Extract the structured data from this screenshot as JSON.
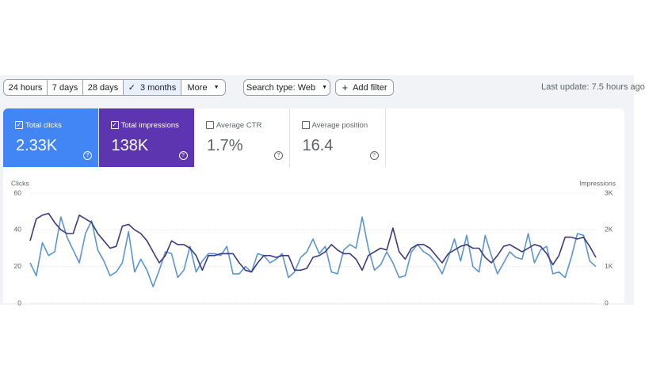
{
  "toolbar": {
    "ranges": [
      "24 hours",
      "7 days",
      "28 days",
      "3 months",
      "More"
    ],
    "selected_range": 3,
    "search_type": "Search type: Web",
    "add_filter": "Add filter",
    "last_update": "Last update: 7.5 hours ago"
  },
  "cards": [
    {
      "label": "Total clicks",
      "value": "2.33K",
      "checked": true,
      "color": "#4285f4"
    },
    {
      "label": "Total impressions",
      "value": "138K",
      "checked": true,
      "color": "#5e35b1"
    },
    {
      "label": "Average CTR",
      "value": "1.7%",
      "checked": false
    },
    {
      "label": "Average position",
      "value": "16.4",
      "checked": false
    }
  ],
  "chart_data": {
    "type": "line",
    "y_label": "Clicks",
    "y2_label": "Impressions",
    "ylim": [
      0,
      60
    ],
    "yticks": [
      0,
      20,
      40,
      60
    ],
    "y2lim": [
      0,
      3000
    ],
    "y2ticks": [
      {
        "value": 0,
        "label": "0"
      },
      {
        "value": 1000,
        "label": "1K"
      },
      {
        "value": 2000,
        "label": "2K"
      },
      {
        "value": 3000,
        "label": "3K"
      }
    ],
    "grid": true,
    "series": [
      {
        "name": "Clicks",
        "color": "#5a95d0",
        "values": [
          22,
          15,
          33,
          26,
          28,
          47,
          36,
          29,
          22,
          38,
          45,
          29,
          23,
          15,
          17,
          22,
          39,
          17,
          24,
          18,
          9,
          18,
          28,
          27,
          14,
          18,
          31,
          17,
          23,
          27,
          27,
          26,
          31,
          16,
          16,
          20,
          17,
          27,
          26,
          22,
          24,
          27,
          14,
          17,
          25,
          28,
          35,
          27,
          31,
          17,
          16,
          29,
          32,
          30,
          47,
          30,
          18,
          21,
          28,
          22,
          14,
          15,
          28,
          32,
          28,
          26,
          22,
          16,
          25,
          35,
          23,
          37,
          20,
          17,
          37,
          26,
          16,
          22,
          28,
          25,
          24,
          38,
          22,
          29,
          31,
          16,
          17,
          14,
          25,
          38,
          37,
          23,
          20
        ]
      },
      {
        "name": "Impressions",
        "color": "#3d3a80",
        "axis": "y2",
        "values": [
          1700,
          2300,
          2400,
          2450,
          2200,
          2000,
          1900,
          1900,
          2400,
          2300,
          2200,
          1900,
          1700,
          1500,
          1550,
          2100,
          2150,
          2000,
          1900,
          1700,
          1400,
          1100,
          1300,
          1700,
          1600,
          1600,
          1500,
          1300,
          900,
          1300,
          1300,
          1350,
          1350,
          1350,
          1100,
          900,
          850,
          1100,
          1300,
          1300,
          1250,
          1300,
          1300,
          900,
          900,
          950,
          1250,
          1300,
          1400,
          1600,
          1450,
          1350,
          1350,
          1200,
          900,
          1300,
          1400,
          1500,
          1450,
          2050,
          1400,
          1200,
          1500,
          1600,
          1600,
          1500,
          1300,
          1100,
          1350,
          1450,
          1550,
          1600,
          1500,
          1500,
          1250,
          1100,
          1300,
          1550,
          1600,
          1500,
          1400,
          1500,
          1600,
          1550,
          1350,
          1050,
          1300,
          1800,
          1800,
          1750,
          1800,
          1550,
          1250
        ]
      }
    ]
  }
}
